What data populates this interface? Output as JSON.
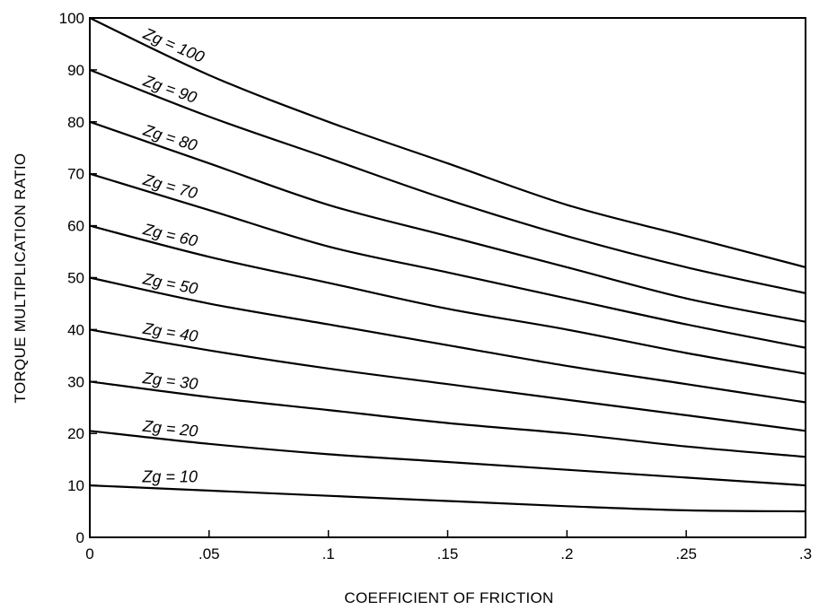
{
  "chart_data": {
    "type": "line",
    "xlabel": "COEFFICIENT OF FRICTION",
    "ylabel": "TORQUE MULTIPLICATION RATIO",
    "xlim": [
      0,
      0.3
    ],
    "ylim": [
      0,
      100
    ],
    "x_ticks": [
      0,
      0.05,
      0.1,
      0.15,
      0.2,
      0.25,
      0.3
    ],
    "x_tick_labels": [
      "0",
      ".05",
      ".1",
      ".15",
      ".2",
      ".25",
      ".3"
    ],
    "y_ticks": [
      0,
      10,
      20,
      30,
      40,
      50,
      60,
      70,
      80,
      90,
      100
    ],
    "y_tick_labels": [
      "0",
      "10",
      "20",
      "30",
      "40",
      "50",
      "60",
      "70",
      "80",
      "90",
      "100"
    ],
    "grid": false,
    "x": [
      0,
      0.05,
      0.1,
      0.15,
      0.2,
      0.25,
      0.3
    ],
    "series": [
      {
        "label": "Zg = 100",
        "values": [
          100,
          89,
          80,
          72,
          64,
          58,
          52
        ]
      },
      {
        "label": "Zg = 90",
        "values": [
          90,
          81,
          73,
          65,
          58,
          52,
          47
        ]
      },
      {
        "label": "Zg = 80",
        "values": [
          80,
          72,
          64,
          58,
          52,
          46,
          41.5
        ]
      },
      {
        "label": "Zg = 70",
        "values": [
          70,
          63,
          56,
          51,
          46,
          41,
          36.5
        ]
      },
      {
        "label": "Zg = 60",
        "values": [
          60,
          54,
          49,
          44,
          40,
          35.5,
          31.5
        ]
      },
      {
        "label": "Zg = 50",
        "values": [
          50,
          45,
          41,
          37,
          33,
          29.5,
          26
        ]
      },
      {
        "label": "Zg = 40",
        "values": [
          40,
          36,
          32.5,
          29.5,
          26.5,
          23.5,
          20.5
        ]
      },
      {
        "label": "Zg = 30",
        "values": [
          30,
          27,
          24.5,
          22,
          20,
          17.5,
          15.5
        ]
      },
      {
        "label": "Zg = 20",
        "values": [
          20.5,
          18,
          16,
          14.5,
          13,
          11.5,
          10
        ]
      },
      {
        "label": "Zg = 10",
        "values": [
          10,
          9,
          8,
          7,
          6,
          5.2,
          5
        ]
      }
    ]
  }
}
